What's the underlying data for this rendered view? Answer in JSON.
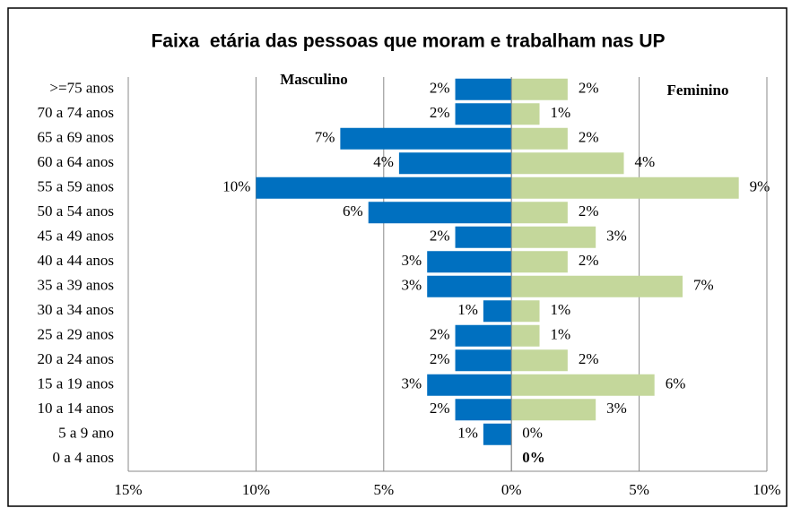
{
  "chart_data": {
    "type": "pyramid",
    "title": "Faixa  etária das pessoas que moram e trabalham nas UP",
    "categories": [
      ">=75 anos",
      "70 a 74 anos",
      "65 a 69 anos",
      "60 a 64 anos",
      "55 a 59 anos",
      "50 a 54 anos",
      "45 a 49 anos",
      "40 a 44 anos",
      "35 a 39 anos",
      "30 a 34 anos",
      "25 a 29 anos",
      "20 a 24 anos",
      "15 a 19 anos",
      "10 a 14 anos",
      "5 a 9 ano",
      "0 a 4 anos"
    ],
    "series": [
      {
        "name": "Masculino",
        "color": "#0070c0",
        "values": [
          -2.2,
          -2.2,
          -6.7,
          -4.4,
          -10.0,
          -5.6,
          -2.2,
          -3.3,
          -3.3,
          -1.1,
          -2.2,
          -2.2,
          -3.3,
          -2.2,
          -1.1,
          0
        ],
        "value_labels": [
          "2%",
          "2%",
          "7%",
          "4%",
          "10%",
          "6%",
          "2%",
          "3%",
          "3%",
          "1%",
          "2%",
          "2%",
          "3%",
          "2%",
          "1%",
          null
        ]
      },
      {
        "name": "Feminino",
        "color": "#c4d79b",
        "values": [
          2.2,
          1.1,
          2.2,
          4.4,
          8.9,
          2.2,
          3.3,
          2.2,
          6.7,
          1.1,
          1.1,
          2.2,
          5.6,
          3.3,
          0,
          0
        ],
        "value_labels": [
          "2%",
          "1%",
          "2%",
          "4%",
          "9%",
          "2%",
          "3%",
          "2%",
          "7%",
          "1%",
          "1%",
          "2%",
          "6%",
          "3%",
          "0%",
          "0%"
        ]
      }
    ],
    "xlim": [
      -15,
      10
    ],
    "xticks": [
      {
        "value": -15,
        "label": "15%"
      },
      {
        "value": -10,
        "label": "10%"
      },
      {
        "value": -5,
        "label": "5%"
      },
      {
        "value": 0,
        "label": "0%"
      },
      {
        "value": 5,
        "label": "5%"
      },
      {
        "value": 10,
        "label": "10%"
      }
    ],
    "grid": true
  }
}
